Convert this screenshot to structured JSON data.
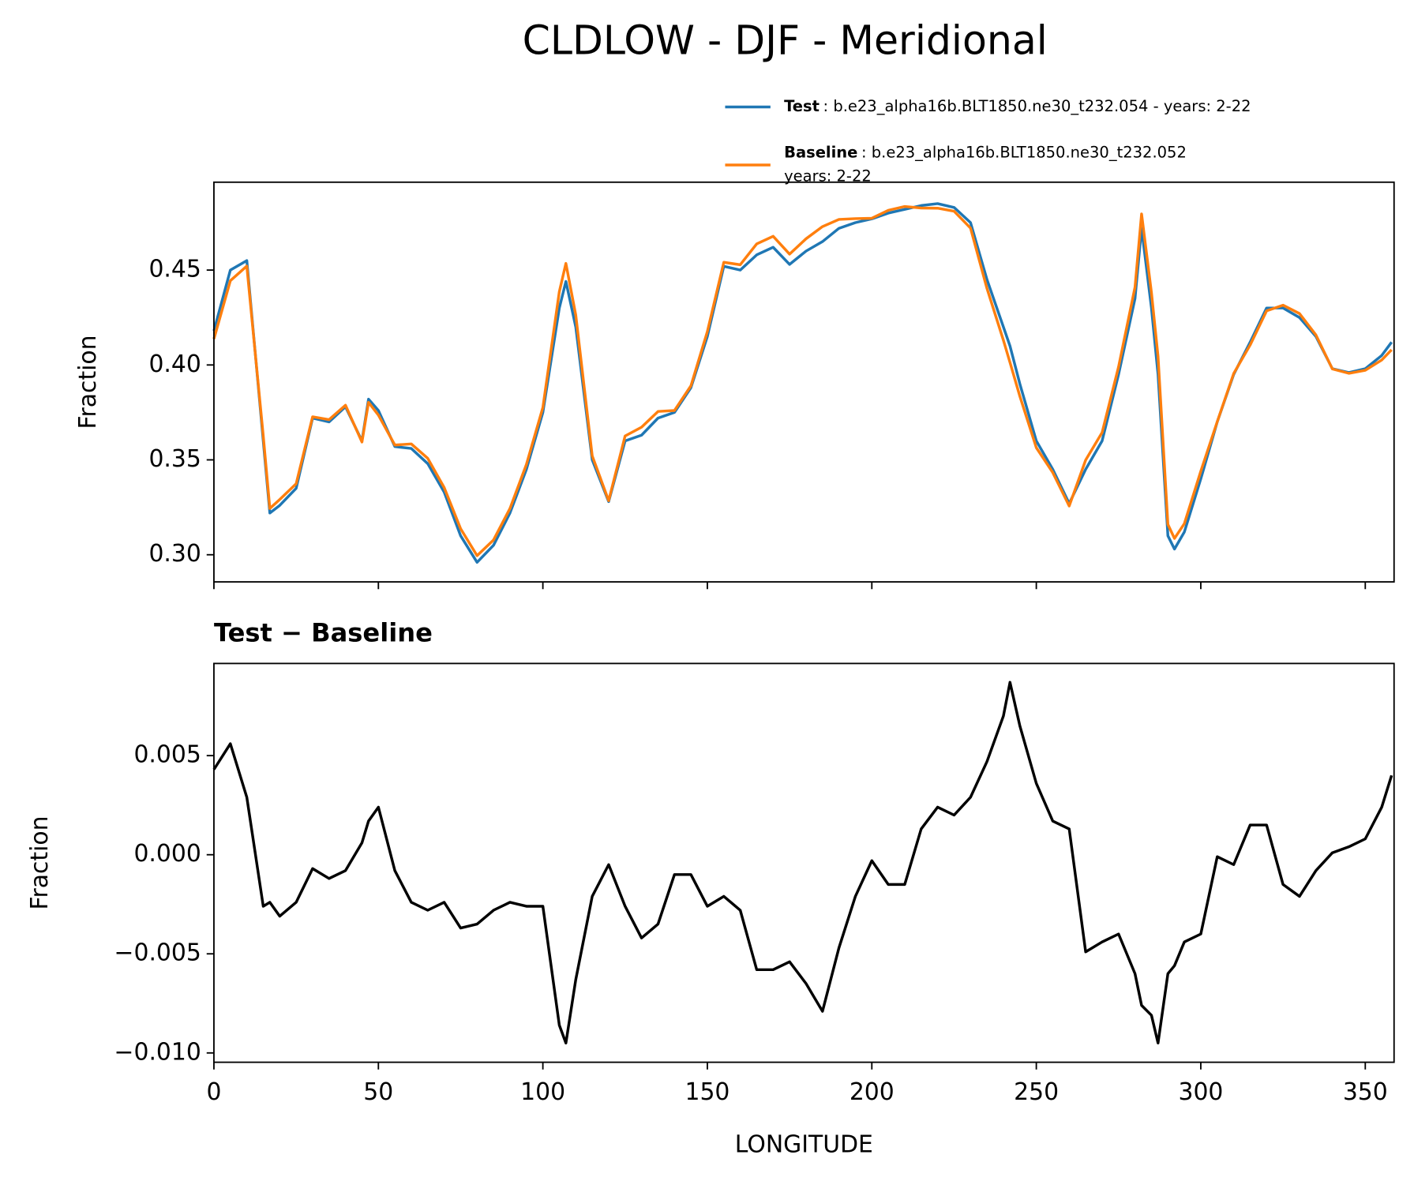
{
  "chart_data": [
    {
      "type": "line",
      "title": "CLDLOW - DJF - Meridional",
      "ylabel": "Fraction",
      "x": [
        0,
        5,
        10,
        15,
        17,
        20,
        25,
        30,
        35,
        40,
        45,
        47,
        50,
        55,
        60,
        65,
        70,
        75,
        80,
        85,
        90,
        95,
        100,
        105,
        107,
        110,
        115,
        120,
        125,
        130,
        135,
        140,
        145,
        150,
        155,
        160,
        165,
        170,
        175,
        180,
        185,
        190,
        195,
        200,
        205,
        210,
        215,
        220,
        225,
        230,
        235,
        240,
        242,
        245,
        250,
        255,
        260,
        265,
        270,
        275,
        280,
        282,
        285,
        287,
        290,
        292,
        295,
        300,
        305,
        310,
        315,
        320,
        325,
        330,
        335,
        340,
        345,
        350,
        355,
        358
      ],
      "series": [
        {
          "name": "Test",
          "case": [
            ": b.e23_alpha16b.BLT1850.ne30_t232.054 - years: 2-22"
          ],
          "color": "#1f77b4",
          "values": [
            0.418,
            0.45,
            0.455,
            0.36,
            0.322,
            0.326,
            0.335,
            0.372,
            0.37,
            0.378,
            0.36,
            0.382,
            0.376,
            0.357,
            0.356,
            0.348,
            0.333,
            0.31,
            0.296,
            0.305,
            0.322,
            0.345,
            0.375,
            0.43,
            0.444,
            0.42,
            0.35,
            0.328,
            0.36,
            0.363,
            0.372,
            0.375,
            0.388,
            0.415,
            0.452,
            0.45,
            0.458,
            0.462,
            0.453,
            0.46,
            0.465,
            0.472,
            0.475,
            0.477,
            0.48,
            0.482,
            0.484,
            0.485,
            0.483,
            0.475,
            0.445,
            0.42,
            0.41,
            0.39,
            0.36,
            0.345,
            0.327,
            0.345,
            0.36,
            0.395,
            0.435,
            0.472,
            0.43,
            0.395,
            0.31,
            0.303,
            0.312,
            0.34,
            0.37,
            0.395,
            0.412,
            0.43,
            0.43,
            0.425,
            0.415,
            0.398,
            0.396,
            0.398,
            0.405,
            0.412
          ]
        },
        {
          "name": "Baseline",
          "case": [
            ": b.e23_alpha16b.BLT1850.ne30_t232.052",
            "years: 2-22"
          ],
          "color": "#ff7f0e",
          "values": [
            0.4137,
            0.4444,
            0.4521,
            0.3626,
            0.3244,
            0.3291,
            0.3374,
            0.3727,
            0.3712,
            0.3788,
            0.3594,
            0.3803,
            0.3736,
            0.3578,
            0.3584,
            0.3508,
            0.3354,
            0.3137,
            0.2995,
            0.3078,
            0.3244,
            0.3476,
            0.3776,
            0.4386,
            0.4535,
            0.4263,
            0.3521,
            0.3285,
            0.3626,
            0.3672,
            0.3755,
            0.376,
            0.389,
            0.4176,
            0.4541,
            0.4528,
            0.4638,
            0.4678,
            0.4584,
            0.4665,
            0.4729,
            0.4767,
            0.4771,
            0.4773,
            0.4815,
            0.4835,
            0.4827,
            0.4826,
            0.481,
            0.4721,
            0.4403,
            0.413,
            0.4013,
            0.3835,
            0.3564,
            0.3433,
            0.3257,
            0.3499,
            0.3644,
            0.399,
            0.441,
            0.4796,
            0.4381,
            0.4045,
            0.316,
            0.3086,
            0.3164,
            0.344,
            0.3701,
            0.3955,
            0.4105,
            0.4285,
            0.4315,
            0.4271,
            0.4158,
            0.3979,
            0.3956,
            0.3972,
            0.4026,
            0.408
          ]
        }
      ],
      "xlim": [
        0,
        358.75
      ],
      "xticks": [
        0,
        50,
        100,
        150,
        200,
        250,
        300,
        350
      ],
      "show_xtick_labels": false,
      "ylim": [
        0.2857,
        0.4963
      ],
      "yticks": [
        {
          "value": 0.3,
          "label": "0.30"
        },
        0.35,
        {
          "value": 0.4,
          "label": "0.40"
        },
        0.45
      ]
    },
    {
      "type": "line",
      "title": "Test − Baseline",
      "ylabel": "Fraction",
      "xlabel": "LONGITUDE",
      "color": "#000000",
      "x": [
        0,
        5,
        10,
        15,
        17,
        20,
        25,
        30,
        35,
        40,
        45,
        47,
        50,
        55,
        60,
        65,
        70,
        75,
        80,
        85,
        90,
        95,
        100,
        105,
        107,
        110,
        115,
        120,
        125,
        130,
        135,
        140,
        145,
        150,
        155,
        160,
        165,
        170,
        175,
        180,
        185,
        190,
        195,
        200,
        205,
        210,
        215,
        220,
        225,
        230,
        235,
        240,
        242,
        245,
        250,
        255,
        260,
        265,
        270,
        275,
        280,
        282,
        285,
        287,
        290,
        292,
        295,
        300,
        305,
        310,
        315,
        320,
        325,
        330,
        335,
        340,
        345,
        350,
        355,
        358
      ],
      "values": [
        0.0043,
        0.0056,
        0.0029,
        -0.0026,
        -0.0024,
        -0.0031,
        -0.0024,
        -0.0007,
        -0.0012,
        -0.0008,
        0.0006,
        0.0017,
        0.0024,
        -0.0008,
        -0.0024,
        -0.0028,
        -0.0024,
        -0.0037,
        -0.0035,
        -0.0028,
        -0.0024,
        -0.0026,
        -0.0026,
        -0.0086,
        -0.0095,
        -0.0063,
        -0.0021,
        -0.0005,
        -0.0026,
        -0.0042,
        -0.0035,
        -0.001,
        -0.001,
        -0.0026,
        -0.0021,
        -0.0028,
        -0.0058,
        -0.0058,
        -0.0054,
        -0.0065,
        -0.0079,
        -0.0047,
        -0.0021,
        -0.0003,
        -0.0015,
        -0.0015,
        0.0013,
        0.0024,
        0.002,
        0.0029,
        0.0047,
        0.007,
        0.0087,
        0.0065,
        0.0036,
        0.0017,
        0.0013,
        -0.0049,
        -0.0044,
        -0.004,
        -0.006,
        -0.0076,
        -0.0081,
        -0.0095,
        -0.006,
        -0.0056,
        -0.0044,
        -0.004,
        -0.0001,
        -0.0005,
        0.0015,
        0.0015,
        -0.0015,
        -0.0021,
        -0.0008,
        0.0001,
        0.0004,
        0.0008,
        0.0024,
        0.004
      ],
      "xlim": [
        0,
        358.75
      ],
      "xticks": [
        0,
        50,
        100,
        150,
        200,
        250,
        300,
        350
      ],
      "show_xtick_labels": true,
      "ylim": [
        -0.01047,
        0.00965
      ],
      "yticks": [
        {
          "value": -0.01,
          "label": "−0.010"
        },
        {
          "value": -0.005,
          "label": "−0.005"
        },
        {
          "value": 0,
          "label": "0.000"
        },
        {
          "value": 0.005,
          "label": "0.005"
        }
      ]
    }
  ]
}
